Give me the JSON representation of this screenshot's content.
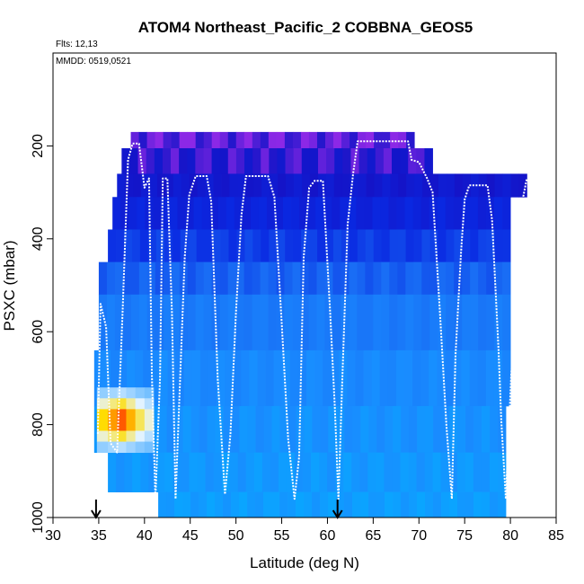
{
  "chart_data": {
    "type": "heatmap",
    "title": "ATOM4 Northeast_Pacific_2 COBBNA_GEOS5",
    "notes": [
      "Flts: 12,13",
      "MMDD: 0519,0521"
    ],
    "xlabel": "Latitude (deg N)",
    "ylabel": "PSXC (mbar)",
    "xlim": [
      30,
      85
    ],
    "ylim": [
      1000,
      0
    ],
    "x_ticks": [
      30,
      35,
      40,
      45,
      50,
      55,
      60,
      65,
      70,
      75,
      80,
      85
    ],
    "y_ticks": [
      200,
      400,
      600,
      800,
      1000
    ],
    "grid": false,
    "legend": "none",
    "markers": [
      {
        "type": "arrow",
        "x": 34.7
      },
      {
        "type": "arrow",
        "x": 61.1
      }
    ],
    "colors": {
      "high_altitude": "#2d00c8",
      "mid": "#0a2ee0",
      "low": "#1e90ff",
      "marine_layer": "#0aa8ff",
      "hotspot": "#ff0000",
      "flight_track": "#ffffff"
    },
    "heat_blocks": [
      {
        "lat": [
          38.5,
          69.5
        ],
        "p": [
          170,
          205
        ],
        "level": 0.05
      },
      {
        "lat": [
          37.5,
          71.5
        ],
        "p": [
          205,
          260
        ],
        "level": 0.12
      },
      {
        "lat": [
          37.0,
          81.8
        ],
        "p": [
          260,
          310
        ],
        "level": 0.2
      },
      {
        "lat": [
          36.5,
          80.0
        ],
        "p": [
          310,
          380
        ],
        "level": 0.3
      },
      {
        "lat": [
          36.0,
          80.0
        ],
        "p": [
          380,
          450
        ],
        "level": 0.42
      },
      {
        "lat": [
          35.0,
          80.0
        ],
        "p": [
          450,
          520
        ],
        "level": 0.55
      },
      {
        "lat": [
          35.0,
          80.0
        ],
        "p": [
          520,
          640
        ],
        "level": 0.7
      },
      {
        "lat": [
          34.5,
          80.0
        ],
        "p": [
          640,
          760
        ],
        "level": 0.82
      },
      {
        "lat": [
          34.5,
          79.5
        ],
        "p": [
          760,
          860
        ],
        "level": 0.88
      },
      {
        "lat": [
          36.0,
          79.5
        ],
        "p": [
          860,
          945
        ],
        "level": 0.92
      },
      {
        "lat": [
          41.5,
          79.5
        ],
        "p": [
          945,
          1000
        ],
        "level": 0.95
      }
    ],
    "hotspot": [
      {
        "lat": [
          34.8,
          36.0
        ],
        "p": [
          720,
          860
        ],
        "level": 0.65
      },
      {
        "lat": [
          36.0,
          37.0
        ],
        "p": [
          720,
          860
        ],
        "level": 0.8
      },
      {
        "lat": [
          37.0,
          38.0
        ],
        "p": [
          720,
          860
        ],
        "level": 0.95
      },
      {
        "lat": [
          38.0,
          39.0
        ],
        "p": [
          720,
          860
        ],
        "level": 0.75
      },
      {
        "lat": [
          39.0,
          40.0
        ],
        "p": [
          720,
          860
        ],
        "level": 0.55
      },
      {
        "lat": [
          40.0,
          41.0
        ],
        "p": [
          720,
          860
        ],
        "level": 0.4
      }
    ],
    "flight_track": {
      "lat": [
        34.9,
        35.2,
        35.8,
        36.3,
        37.0,
        37.6,
        38.2,
        38.7,
        39.4,
        40.0,
        40.5,
        40.8,
        41.2,
        41.7,
        42.0,
        42.5,
        43.0,
        43.4,
        43.9,
        44.4,
        44.9,
        45.6,
        46.8,
        47.3,
        48.0,
        48.8,
        49.4,
        50.0,
        50.6,
        51.1,
        51.6,
        53.5,
        54.2,
        55.0,
        55.7,
        56.4,
        56.9,
        57.4,
        58.0,
        58.6,
        59.5,
        60.3,
        60.8,
        61.2,
        61.6,
        62.2,
        62.8,
        63.3,
        68.8,
        69.2,
        70.0,
        70.9,
        71.5,
        72.3,
        73.0,
        73.6,
        74.0,
        74.6,
        75.0,
        75.5,
        77.5,
        78.0,
        78.7,
        79.0,
        79.5,
        80.1,
        81.0,
        81.4,
        81.8
      ],
      "p": [
        820,
        540,
        590,
        840,
        860,
        560,
        230,
        195,
        195,
        290,
        270,
        690,
        960,
        700,
        270,
        270,
        560,
        960,
        700,
        440,
        305,
        265,
        265,
        320,
        700,
        950,
        820,
        560,
        350,
        265,
        265,
        265,
        310,
        580,
        830,
        960,
        870,
        440,
        290,
        275,
        275,
        560,
        760,
        960,
        720,
        370,
        260,
        190,
        190,
        230,
        235,
        270,
        300,
        560,
        800,
        960,
        650,
        430,
        315,
        285,
        285,
        360,
        640,
        790,
        960,
        690,
        430,
        310,
        270
      ]
    }
  }
}
